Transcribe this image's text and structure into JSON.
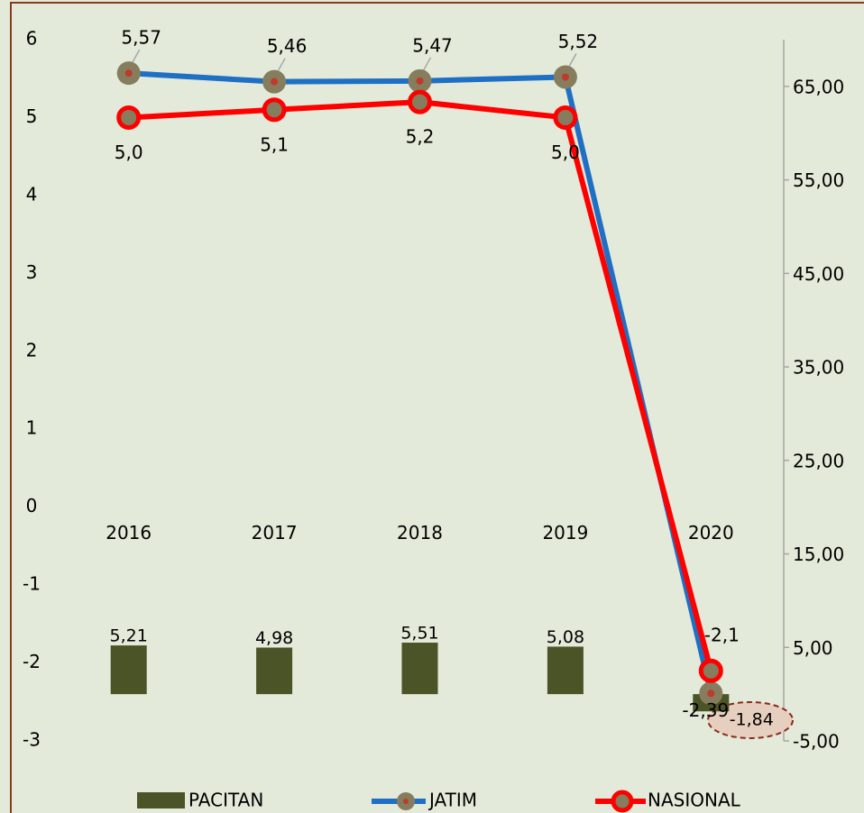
{
  "chart_data": {
    "type": "combo",
    "categories": [
      "2016",
      "2017",
      "2018",
      "2019",
      "2020"
    ],
    "series": [
      {
        "name": "PACITAN",
        "type": "bar",
        "axis": "y2",
        "color": "#4a5427",
        "values": [
          5.21,
          4.98,
          5.51,
          5.08,
          -1.84
        ],
        "value_labels": [
          "5,21",
          "4,98",
          "5,51",
          "5,08",
          "-1,84"
        ]
      },
      {
        "name": "JATIM",
        "type": "line",
        "color": "#1f6fc4",
        "values": [
          5.57,
          5.46,
          5.47,
          5.52,
          -2.39
        ],
        "value_labels": [
          "5,57",
          "5,46",
          "5,47",
          "5,52",
          "-2,39"
        ]
      },
      {
        "name": "NASIONAL",
        "type": "line",
        "color": "#ff0000",
        "values": [
          5.0,
          5.1,
          5.2,
          5.0,
          -2.1
        ],
        "value_labels": [
          "5,0",
          "5,1",
          "5,2",
          "5,0",
          "-2,1"
        ]
      }
    ],
    "ylim": [
      -3,
      6
    ],
    "yticks": [
      -3,
      -2,
      -1,
      0,
      1,
      2,
      3,
      4,
      5,
      6
    ],
    "y2lim": [
      -5,
      70
    ],
    "y2ticks": [
      {
        "value": -5,
        "label": "-5,00"
      },
      {
        "value": 5,
        "label": "5,00"
      },
      {
        "value": 15,
        "label": "15,00"
      },
      {
        "value": 25,
        "label": "25,00"
      },
      {
        "value": 35,
        "label": "35,00"
      },
      {
        "value": 45,
        "label": "45,00"
      },
      {
        "value": 55,
        "label": "55,00"
      },
      {
        "value": 65,
        "label": "65,00"
      }
    ],
    "grid": false,
    "legend": "bottom"
  }
}
